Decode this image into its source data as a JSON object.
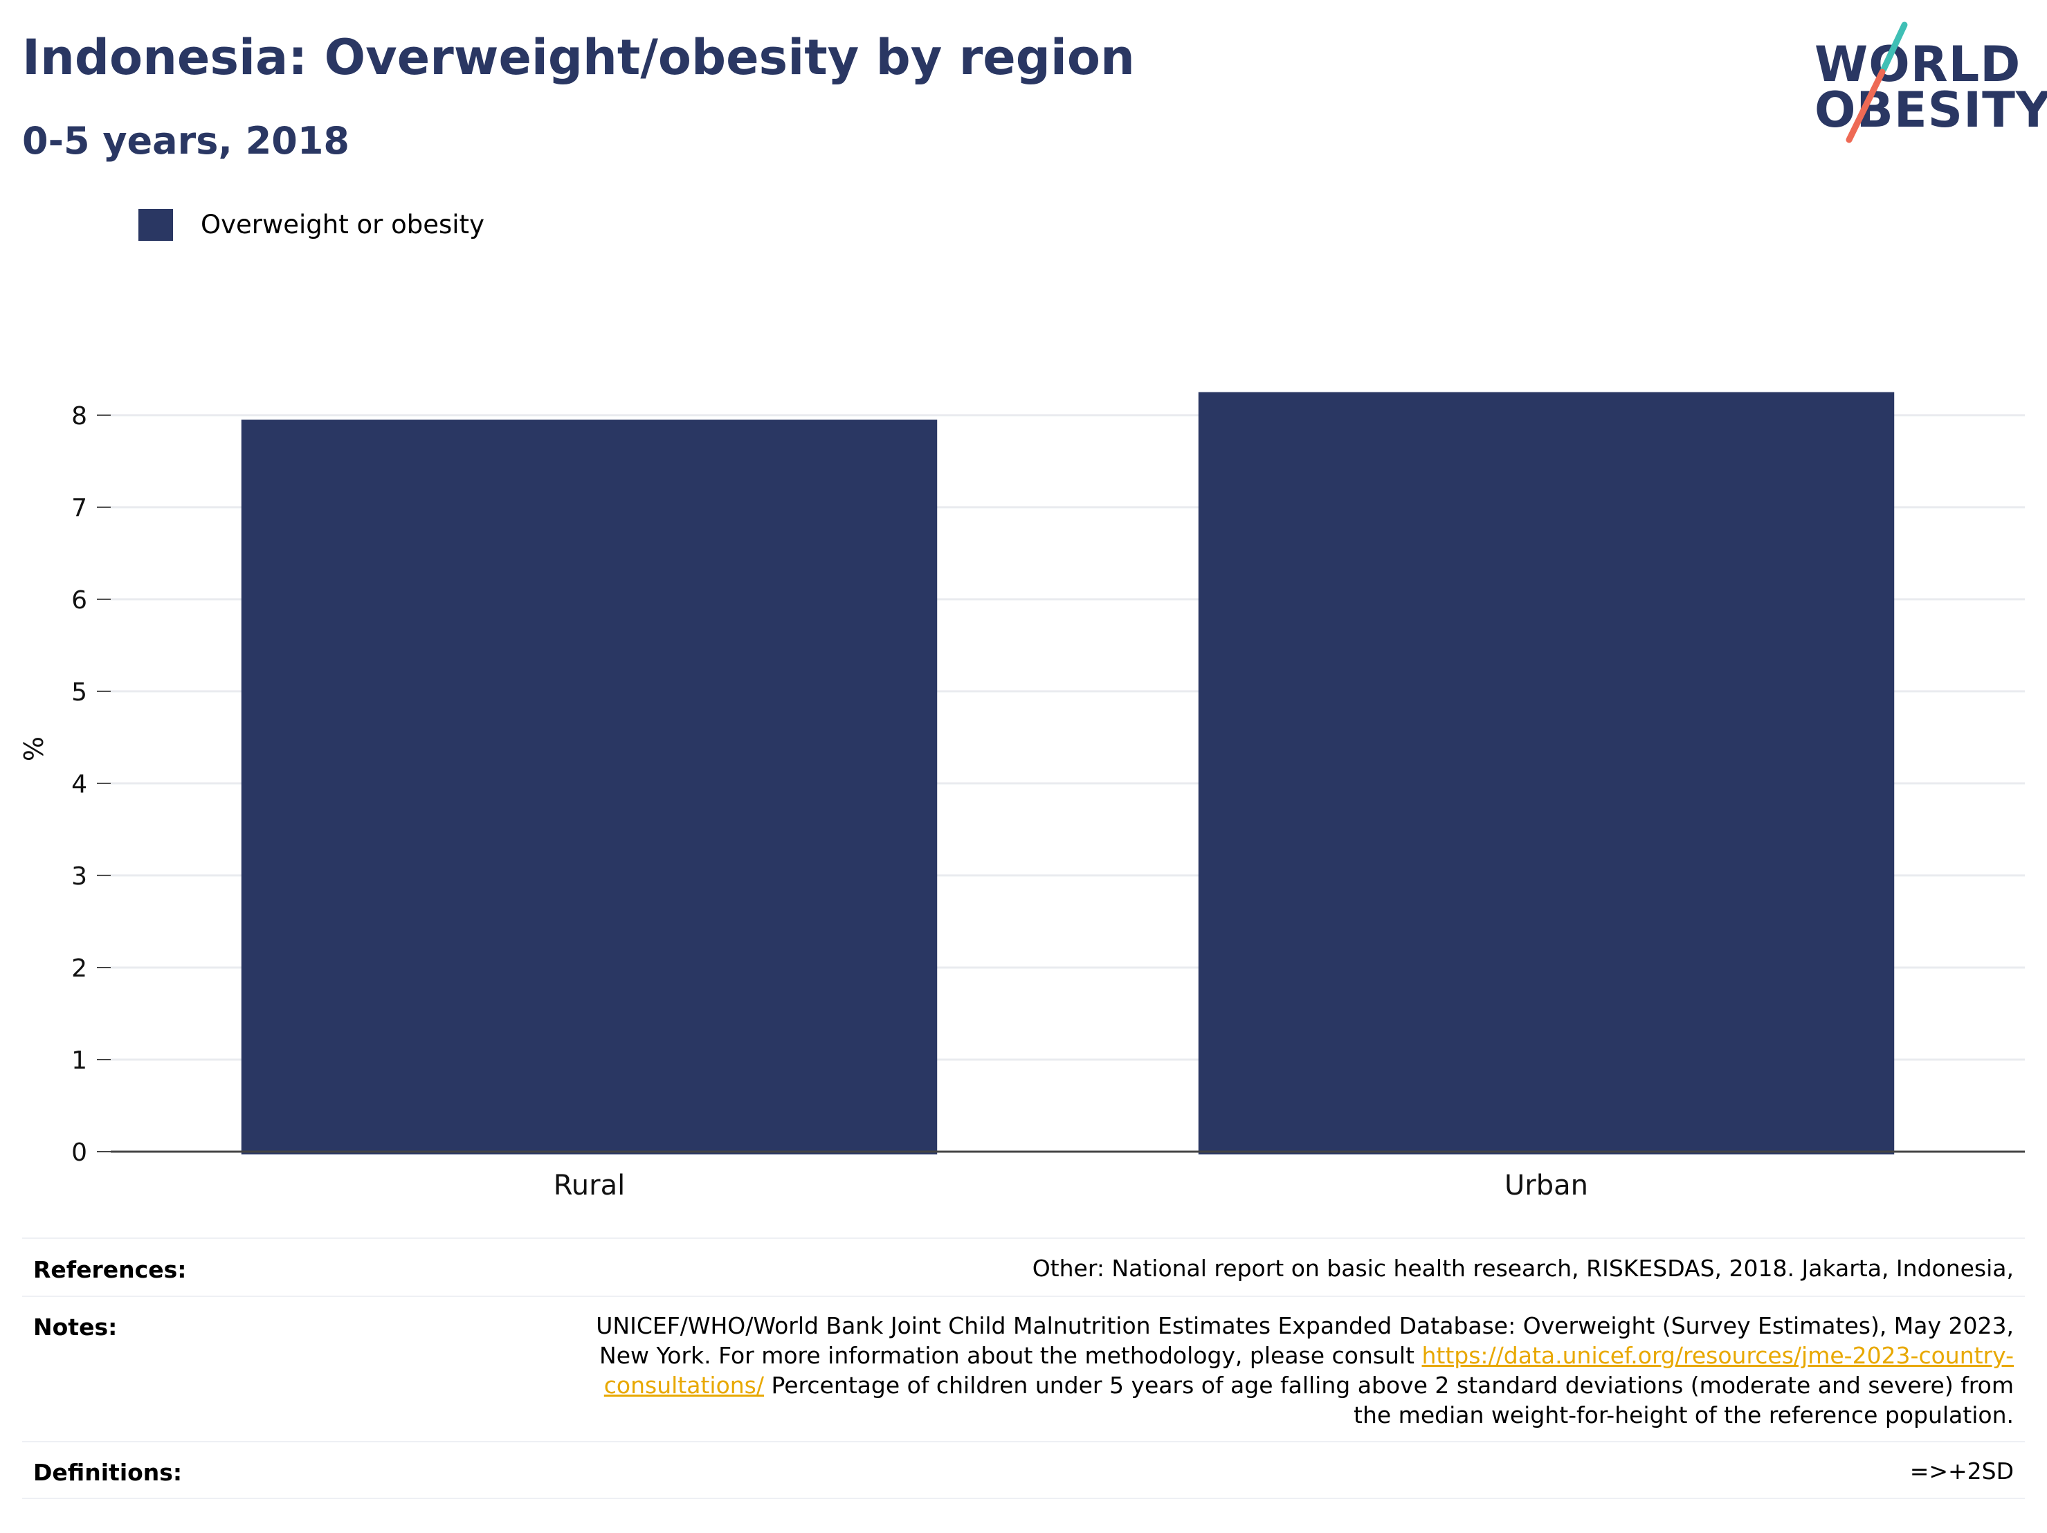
{
  "header": {
    "title": "Indonesia: Overweight/obesity by region",
    "subtitle": "0-5 years, 2018"
  },
  "logo": {
    "line1": "WORLD",
    "line2": "OBESITY",
    "accent_teal": "#3fbfb5",
    "accent_coral": "#ee6a55"
  },
  "colors": {
    "primary": "#2a3763",
    "grid": "#e9ebef",
    "link": "#e8a800"
  },
  "chart_data": {
    "type": "bar",
    "categories": [
      "Rural",
      "Urban"
    ],
    "series": [
      {
        "name": "Overweight or obesity",
        "values": [
          7.95,
          8.25
        ],
        "color": "#2a3763"
      }
    ],
    "ylabel": "%",
    "xlabel": "",
    "ylim": [
      0,
      8.6
    ],
    "yticks": [
      0,
      1,
      2,
      3,
      4,
      5,
      6,
      7,
      8
    ],
    "grid": true,
    "legend_position": "top-left"
  },
  "footer": {
    "references_label": "References:",
    "references_text": "Other: National report on basic health research, RISKESDAS, 2018. Jakarta, Indonesia,",
    "notes_label": "Notes:",
    "notes_text_1": "UNICEF/WHO/World Bank Joint Child Malnutrition Estimates Expanded Database: Overweight (Survey Estimates), May 2023, New York. For more information about the methodology, please consult",
    "notes_link": "https://data.unicef.org/resources/jme-2023-country-consultations/",
    "notes_text_2": "Percentage of children under 5 years of age falling above 2 standard deviations (moderate and severe) from the median weight-for-height of the reference population.",
    "definitions_label": "Definitions:",
    "definitions_text": "=>+2SD"
  }
}
